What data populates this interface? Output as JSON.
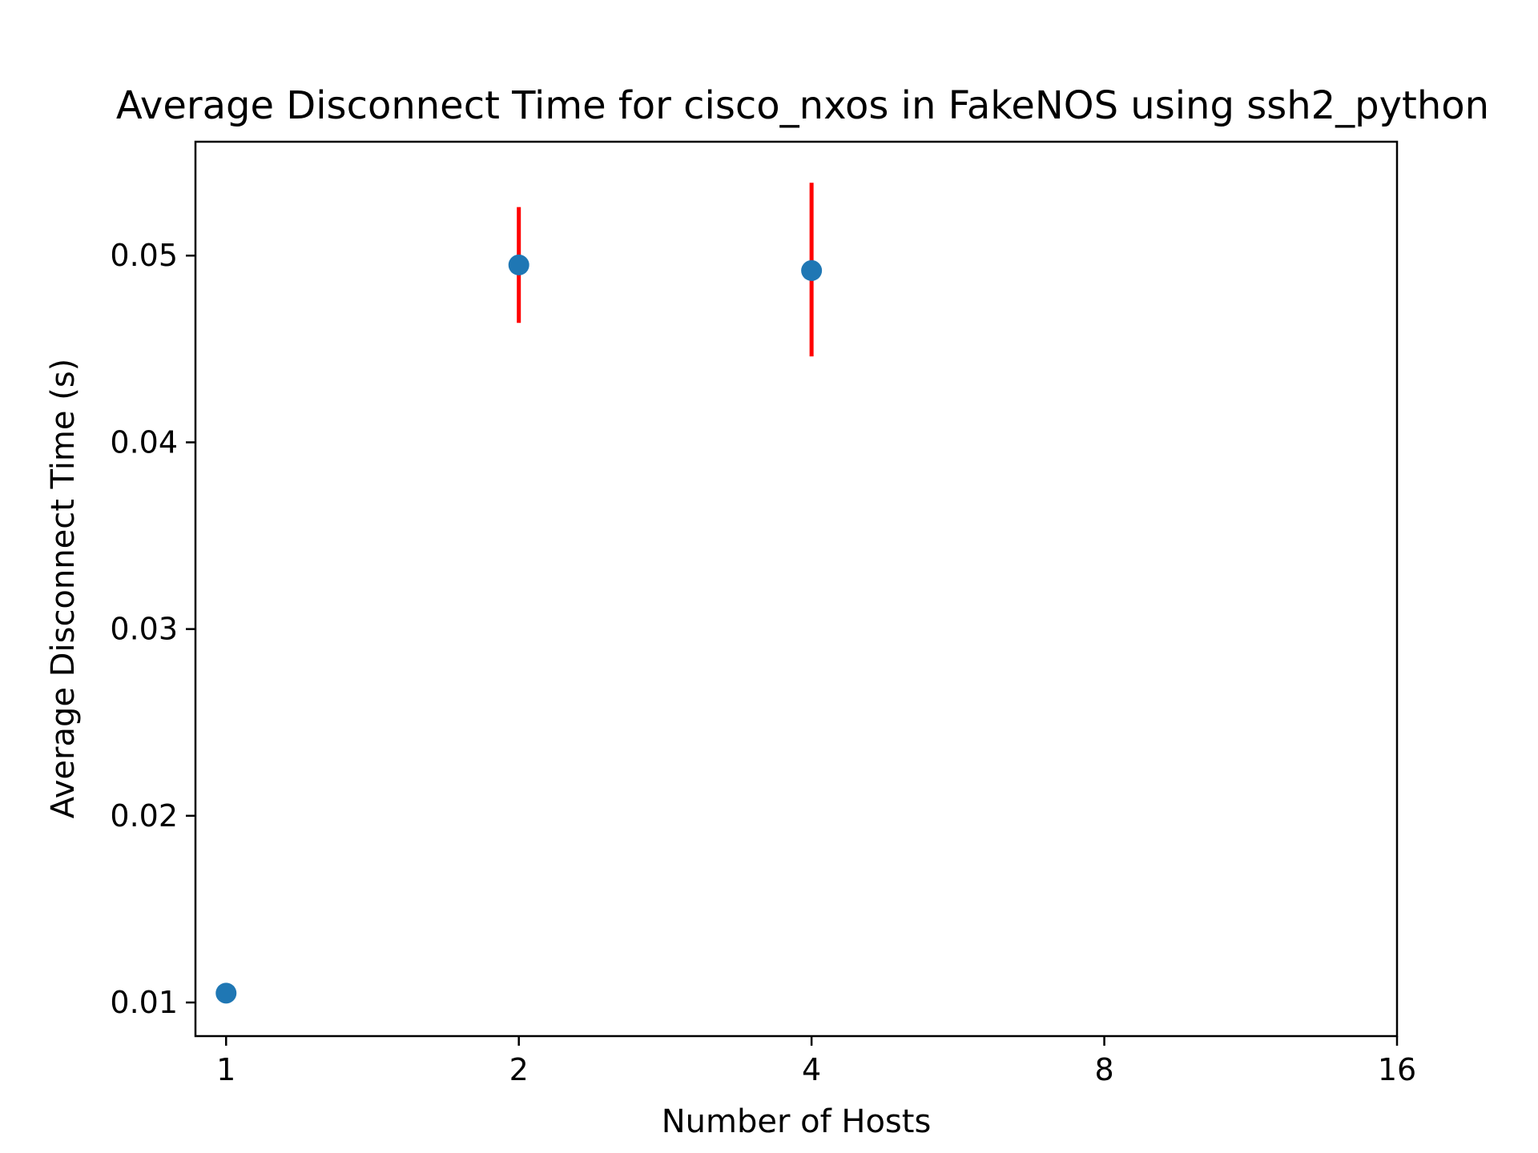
{
  "chart_data": {
    "type": "scatter",
    "title": "Average Disconnect Time for cisco_nxos in FakeNOS using ssh2_python",
    "xlabel": "Number of Hosts",
    "ylabel": "Average Disconnect Time (s)",
    "x_scale": "log2",
    "x_ticks": [
      1,
      2,
      4,
      8,
      16
    ],
    "x_tick_labels": [
      "1",
      "2",
      "4",
      "8",
      "16"
    ],
    "xlim": [
      0.93,
      16
    ],
    "y_ticks": [
      0.01,
      0.02,
      0.03,
      0.04,
      0.05
    ],
    "y_tick_labels": [
      "0.01",
      "0.02",
      "0.03",
      "0.04",
      "0.05"
    ],
    "ylim": [
      0.0082,
      0.0561
    ],
    "grid": false,
    "marker_color": "#1f77b4",
    "errorbar_color": "#ff0000",
    "points": [
      {
        "x": 1,
        "y": 0.0105,
        "y_err_low": 0.0105,
        "y_err_high": 0.0105
      },
      {
        "x": 2,
        "y": 0.0495,
        "y_err_low": 0.0464,
        "y_err_high": 0.0526
      },
      {
        "x": 4,
        "y": 0.0492,
        "y_err_low": 0.0446,
        "y_err_high": 0.0539
      }
    ]
  }
}
